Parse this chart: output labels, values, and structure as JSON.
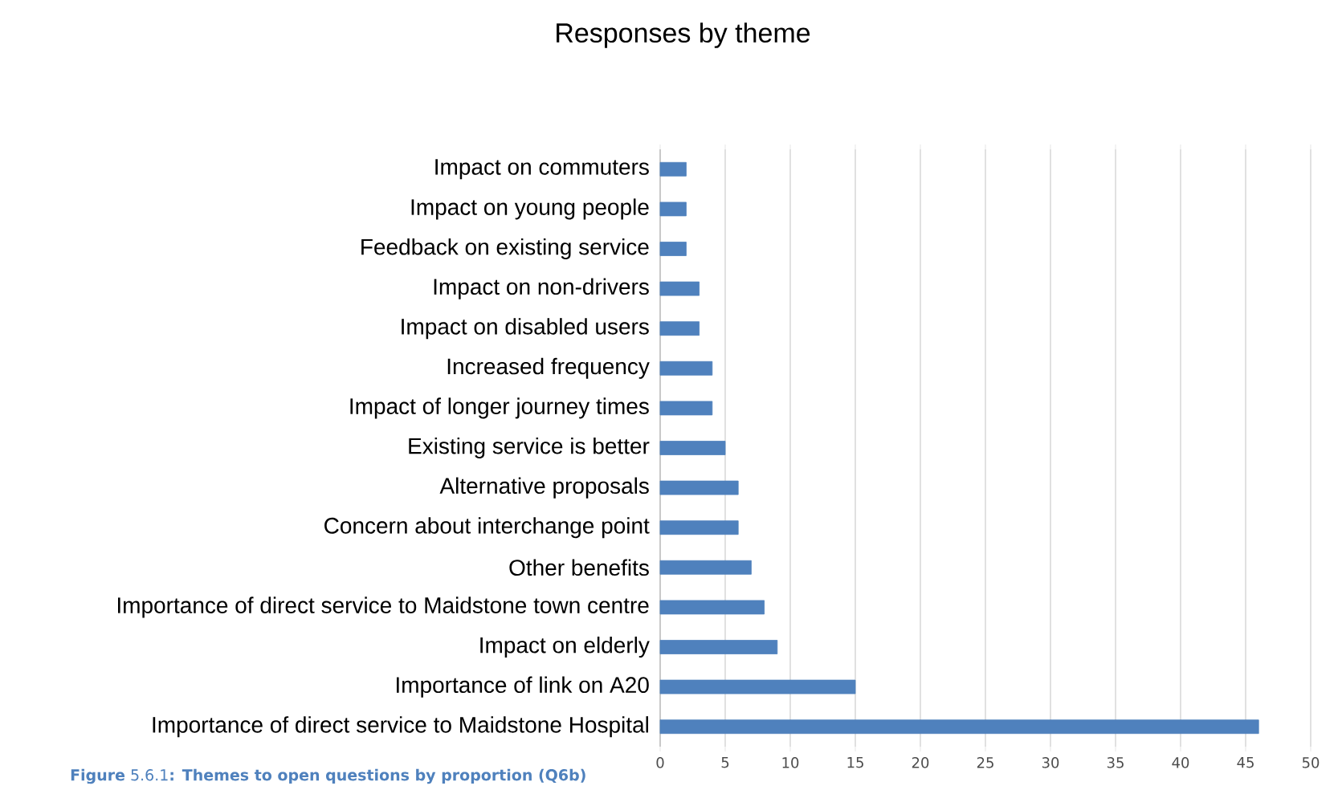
{
  "chart_data": {
    "type": "bar",
    "orientation": "horizontal",
    "title": "Responses by theme",
    "categories": [
      "Impact on commuters",
      "Impact on young people",
      "Feedback on existing service",
      "Impact on non-drivers",
      "Impact on disabled users",
      "Increased frequency",
      "Impact of longer journey times",
      "Existing service is better",
      "Alternative proposals",
      "Concern about interchange point",
      "Other benefits",
      "Importance of direct service to Maidstone town centre",
      "Impact on elderly",
      "Importance of link on A20",
      "Importance of direct service to Maidstone Hospital"
    ],
    "values": [
      2,
      2,
      2,
      3,
      3,
      4,
      4,
      5,
      6,
      6,
      7,
      8,
      9,
      15,
      46
    ],
    "color": "#4f81bd",
    "xlim": [
      0,
      50
    ],
    "xticks": [
      0,
      5,
      10,
      15,
      20,
      25,
      30,
      35,
      40,
      45,
      50
    ],
    "grid": "x",
    "annotations": [
      "**Figure** 5.6.1**: Themes to open questions by proportion (Q6b)**"
    ]
  }
}
